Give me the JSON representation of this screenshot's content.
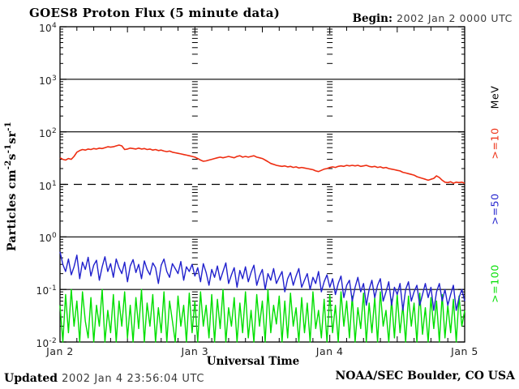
{
  "header": {
    "title": "GOES8 Proton Flux (5 minute data)",
    "begin_label": "Begin:",
    "begin_value": "2002 Jan 2 0000 UTC"
  },
  "axes": {
    "x_title": "Universal Time",
    "x_tick_labels": [
      "Jan 2",
      "Jan 3",
      "Jan 4",
      "Jan 5"
    ],
    "y_ticks": [
      {
        "base": "10",
        "exp": "4"
      },
      {
        "base": "10",
        "exp": "3"
      },
      {
        "base": "10",
        "exp": "2"
      },
      {
        "base": "10",
        "exp": "1"
      },
      {
        "base": "10",
        "exp": "0"
      },
      {
        "base": "10",
        "exp": "-1"
      },
      {
        "base": "10",
        "exp": "-2"
      }
    ],
    "y_title_segments": [
      {
        "t": "Particles cm"
      },
      {
        "t": "-2",
        "sup": true
      },
      {
        "t": "s"
      },
      {
        "t": "-1",
        "sup": true
      },
      {
        "t": "sr"
      },
      {
        "t": "-1",
        "sup": true
      }
    ]
  },
  "legend": {
    "entries": [
      {
        "label": "MeV",
        "color": "#000000"
      },
      {
        "label": ">=10",
        "color": "#ee2d11"
      },
      {
        "label": ">=50",
        "color": "#2121cd"
      },
      {
        "label": ">=100",
        "color": "#00df00"
      }
    ]
  },
  "footer": {
    "updated_label": "Updated",
    "updated_value": "2002 Jan  4 23:56:04 UTC",
    "credit": "NOAA/SEC Boulder, CO USA"
  },
  "chart_data": {
    "type": "line",
    "title": "GOES8 Proton Flux (5 minute data)",
    "xlabel": "Universal Time",
    "ylabel": "Particles cm^-2 s^-1 sr^-1",
    "begin": "2002 Jan 2 0000 UTC",
    "x_unit": "hours since begin",
    "x_range_hours": [
      0,
      72
    ],
    "x_day_tick_hours": [
      0,
      24,
      48,
      72
    ],
    "y_scale": "log",
    "y_range": [
      0.01,
      10000
    ],
    "grid": {
      "solid_hline_exponents": [
        3,
        2,
        0,
        -1
      ],
      "dashed_hline_exponents": [
        1
      ],
      "vline_tick_column_hours": [
        24,
        48
      ]
    },
    "series": [
      {
        "name": ">=10 MeV",
        "color": "#ee2d11",
        "width": 1.6,
        "dt_hours": 0.5,
        "values": [
          32,
          30,
          29,
          31,
          30,
          34,
          41,
          44,
          46,
          45,
          47,
          46,
          48,
          47,
          49,
          48,
          50,
          52,
          51,
          52,
          54,
          56,
          54,
          46,
          47,
          49,
          48,
          47,
          49,
          47,
          48,
          46,
          47,
          45,
          46,
          44,
          45,
          43,
          42,
          43,
          41,
          40,
          39,
          38,
          37,
          36,
          35,
          34,
          33,
          31,
          29,
          27.5,
          28,
          29,
          30,
          31,
          32,
          33,
          32,
          33,
          34,
          33,
          32,
          34,
          35,
          33,
          34,
          33,
          34,
          35,
          33,
          32,
          31,
          29,
          27,
          25,
          24,
          23,
          22.5,
          22,
          22.5,
          21.5,
          22,
          21,
          21.5,
          20.5,
          21,
          20.5,
          20,
          19.5,
          19,
          18,
          17.5,
          18.5,
          19.5,
          20,
          21,
          21.5,
          21,
          22,
          22.5,
          22,
          23,
          22.5,
          23,
          22.5,
          23,
          22,
          22.5,
          23,
          22,
          21.5,
          22,
          21,
          21.5,
          20.5,
          21,
          20,
          19.5,
          19,
          18.5,
          18,
          17,
          16.5,
          16,
          15.5,
          15,
          14,
          13.5,
          13,
          12.5,
          12,
          12.5,
          13,
          14.5,
          13.5,
          12,
          11,
          10.8,
          11.2,
          10.5,
          11,
          10.8,
          11,
          10.5
        ]
      },
      {
        "name": ">=50 MeV",
        "color": "#2121cd",
        "width": 1.4,
        "dt_hours": 0.5,
        "values": [
          0.52,
          0.3,
          0.22,
          0.38,
          0.19,
          0.27,
          0.45,
          0.16,
          0.33,
          0.24,
          0.41,
          0.18,
          0.29,
          0.36,
          0.15,
          0.27,
          0.42,
          0.22,
          0.31,
          0.17,
          0.38,
          0.26,
          0.2,
          0.33,
          0.14,
          0.28,
          0.37,
          0.21,
          0.3,
          0.16,
          0.35,
          0.24,
          0.19,
          0.32,
          0.26,
          0.13,
          0.29,
          0.38,
          0.22,
          0.17,
          0.31,
          0.25,
          0.2,
          0.34,
          0.15,
          0.27,
          0.22,
          0.3,
          0.18,
          0.26,
          0.14,
          0.31,
          0.21,
          0.12,
          0.24,
          0.17,
          0.28,
          0.15,
          0.22,
          0.32,
          0.13,
          0.19,
          0.26,
          0.11,
          0.23,
          0.16,
          0.27,
          0.14,
          0.21,
          0.29,
          0.12,
          0.18,
          0.24,
          0.1,
          0.2,
          0.15,
          0.25,
          0.13,
          0.17,
          0.22,
          0.09,
          0.16,
          0.21,
          0.12,
          0.18,
          0.25,
          0.11,
          0.15,
          0.2,
          0.1,
          0.17,
          0.13,
          0.22,
          0.09,
          0.14,
          0.19,
          0.11,
          0.16,
          0.08,
          0.13,
          0.18,
          0.07,
          0.12,
          0.15,
          0.06,
          0.11,
          0.17,
          0.09,
          0.13,
          0.05,
          0.1,
          0.15,
          0.07,
          0.12,
          0.16,
          0.06,
          0.09,
          0.14,
          0.05,
          0.11,
          0.08,
          0.13,
          0.04,
          0.1,
          0.14,
          0.06,
          0.09,
          0.12,
          0.05,
          0.08,
          0.13,
          0.07,
          0.11,
          0.04,
          0.09,
          0.13,
          0.06,
          0.1,
          0.05,
          0.08,
          0.12,
          0.04,
          0.07,
          0.1,
          0.06
        ]
      },
      {
        "name": ">=100 MeV",
        "color": "#00df00",
        "width": 1.4,
        "dt_hours": 0.5,
        "values": [
          0.05,
          0.01,
          0.08,
          0.015,
          0.1,
          0.02,
          0.06,
          0.01,
          0.09,
          0.025,
          0.012,
          0.07,
          0.01,
          0.05,
          0.02,
          0.1,
          0.01,
          0.04,
          0.015,
          0.08,
          0.01,
          0.06,
          0.02,
          0.09,
          0.012,
          0.05,
          0.01,
          0.07,
          0.018,
          0.1,
          0.01,
          0.055,
          0.02,
          0.08,
          0.01,
          0.045,
          0.015,
          0.09,
          0.01,
          0.06,
          0.025,
          0.01,
          0.075,
          0.02,
          0.05,
          0.01,
          0.085,
          0.015,
          0.06,
          0.01,
          0.09,
          0.02,
          0.05,
          0.012,
          0.08,
          0.01,
          0.065,
          0.018,
          0.1,
          0.01,
          0.045,
          0.02,
          0.07,
          0.01,
          0.055,
          0.015,
          0.09,
          0.012,
          0.04,
          0.01,
          0.08,
          0.02,
          0.06,
          0.01,
          0.1,
          0.015,
          0.05,
          0.022,
          0.075,
          0.01,
          0.06,
          0.012,
          0.085,
          0.02,
          0.045,
          0.01,
          0.07,
          0.015,
          0.055,
          0.01,
          0.09,
          0.018,
          0.04,
          0.012,
          0.065,
          0.01,
          0.08,
          0.015,
          0.05,
          0.01,
          0.09,
          0.02,
          0.06,
          0.012,
          0.075,
          0.01,
          0.045,
          0.018,
          0.085,
          0.01,
          0.055,
          0.015,
          0.07,
          0.01,
          0.09,
          0.02,
          0.04,
          0.01,
          0.065,
          0.012,
          0.08,
          0.015,
          0.05,
          0.01,
          0.075,
          0.02,
          0.055,
          0.01,
          0.085,
          0.014,
          0.045,
          0.01,
          0.07,
          0.018,
          0.06,
          0.01,
          0.08,
          0.012,
          0.05,
          0.015,
          0.065,
          0.01,
          0.075,
          0.02,
          0.04
        ]
      }
    ]
  }
}
